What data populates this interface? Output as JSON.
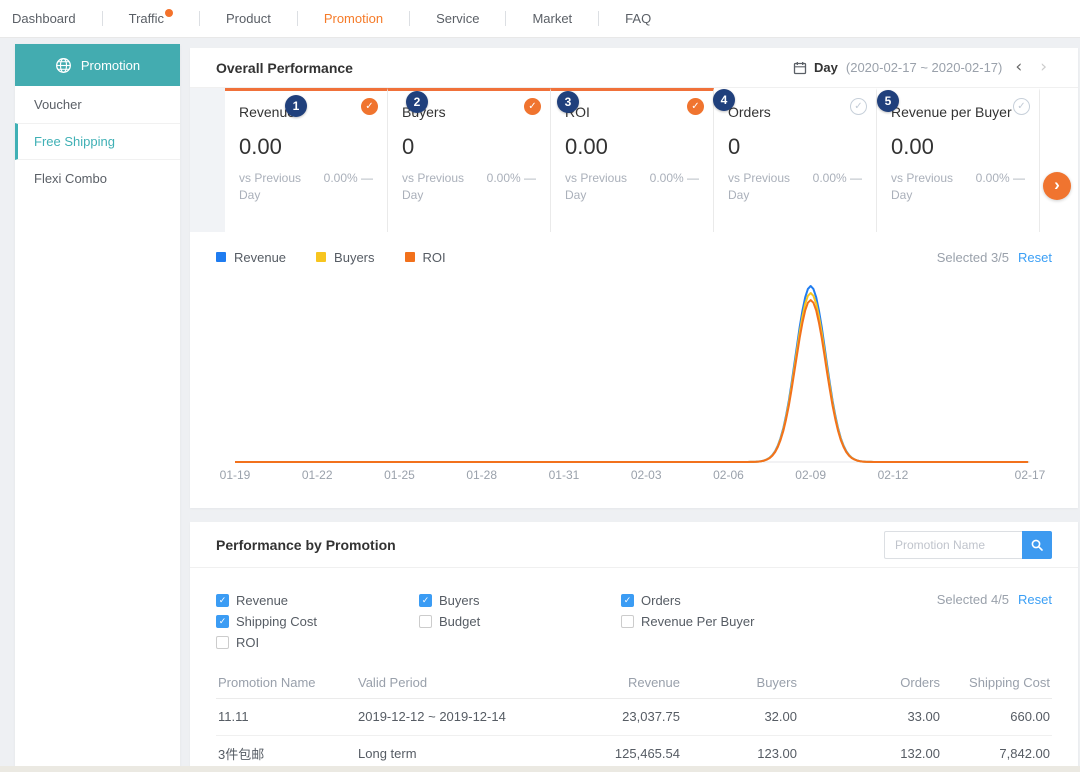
{
  "colors": {
    "teal": "#43acb0",
    "nav_active_orange": "#f57b29",
    "card_accent_orange": "#f0713a",
    "link_blue": "#3b9ff5",
    "checkbox_blue": "#3b9cf4",
    "search_button_blue": "#3d9af0",
    "marker_badge_navy": "#20407c"
  },
  "nav": {
    "items": [
      {
        "label": "Dashboard",
        "active": false,
        "dot": false
      },
      {
        "label": "Traffic",
        "active": false,
        "dot": true
      },
      {
        "label": "Product",
        "active": false,
        "dot": false
      },
      {
        "label": "Promotion",
        "active": true,
        "dot": false
      },
      {
        "label": "Service",
        "active": false,
        "dot": false
      },
      {
        "label": "Market",
        "active": false,
        "dot": false
      },
      {
        "label": "FAQ",
        "active": false,
        "dot": false
      }
    ]
  },
  "sidebar": {
    "header": {
      "label": "Promotion",
      "icon": "globe-icon"
    },
    "items": [
      {
        "label": "Voucher",
        "active": false
      },
      {
        "label": "Free Shipping",
        "active": true
      },
      {
        "label": "Flexi Combo",
        "active": false
      }
    ]
  },
  "overall": {
    "title": "Overall Performance",
    "period_label": "Day",
    "date_range": "(2020-02-17 ~ 2020-02-17)",
    "prev_icon": "‹",
    "next_icon": "›",
    "carousel_next_icon": "›",
    "selected_label": "Selected 3/5",
    "reset_label": "Reset",
    "cards": [
      {
        "marker": "1",
        "label": "Revenue",
        "value": "0.00",
        "compare_label": "vs Previous Day",
        "change": "0.00% —",
        "selected": true
      },
      {
        "marker": "2",
        "label": "Buyers",
        "value": "0",
        "compare_label": "vs Previous Day",
        "change": "0.00% —",
        "selected": true
      },
      {
        "marker": "3",
        "label": "ROI",
        "value": "0.00",
        "compare_label": "vs Previous Day",
        "change": "0.00% —",
        "selected": true
      },
      {
        "marker": "4",
        "label": "Orders",
        "value": "0",
        "compare_label": "vs Previous Day",
        "change": "0.00% —",
        "selected": false
      },
      {
        "marker": "5",
        "label": "Revenue per Buyer",
        "value": "0.00",
        "compare_label": "vs Previous Day",
        "change": "0.00% —",
        "selected": false
      }
    ],
    "legend": [
      {
        "label": "Revenue",
        "color": "#1f7cf0"
      },
      {
        "label": "Buyers",
        "color": "#f7c51f"
      },
      {
        "label": "ROI",
        "color": "#f2711c"
      }
    ]
  },
  "chart_data": {
    "type": "line",
    "x_interval": "daily from 01-19 to 02-17",
    "x_tick_labels": [
      "01-19",
      "01-22",
      "01-25",
      "01-28",
      "01-31",
      "02-03",
      "02-06",
      "02-09",
      "02-12",
      "02-17"
    ],
    "spike_date": "02-09",
    "y_axis": "hidden (no tick labels shown); values are relative heights 0-1",
    "grid": "off",
    "legend_position": "top-left above chart",
    "series": [
      {
        "name": "Revenue",
        "color": "#1f7cf0",
        "peak_relative": 1.0,
        "values_at_ticks": [
          0,
          0,
          0,
          0,
          0,
          0,
          0,
          1.0,
          0,
          0
        ]
      },
      {
        "name": "Buyers",
        "color": "#f7c51f",
        "peak_relative": 0.96,
        "values_at_ticks": [
          0,
          0,
          0,
          0,
          0,
          0,
          0,
          0.96,
          0,
          0
        ]
      },
      {
        "name": "ROI",
        "color": "#f2711c",
        "peak_relative": 0.92,
        "values_at_ticks": [
          0,
          0,
          0,
          0,
          0,
          0,
          0,
          0.92,
          0,
          0
        ]
      }
    ]
  },
  "promotion_panel": {
    "title": "Performance by Promotion",
    "search": {
      "placeholder": "Promotion Name"
    },
    "selected_label": "Selected 4/5",
    "reset_label": "Reset",
    "checkboxes": [
      {
        "label": "Revenue",
        "checked": true
      },
      {
        "label": "Buyers",
        "checked": true
      },
      {
        "label": "Orders",
        "checked": true
      },
      {
        "label": "Shipping Cost",
        "checked": true
      },
      {
        "label": "Budget",
        "checked": false
      },
      {
        "label": "Revenue Per Buyer",
        "checked": false
      },
      {
        "label": "ROI",
        "checked": false
      }
    ],
    "table": {
      "columns": [
        "Promotion Name",
        "Valid Period",
        "Revenue",
        "Buyers",
        "Orders",
        "Shipping Cost"
      ],
      "rows": [
        [
          "11.11",
          "2019-12-12 ~ 2019-12-14",
          "23,037.75",
          "32.00",
          "33.00",
          "660.00"
        ],
        [
          "3件包邮",
          "Long term",
          "125,465.54",
          "123.00",
          "132.00",
          "7,842.00"
        ]
      ]
    }
  }
}
